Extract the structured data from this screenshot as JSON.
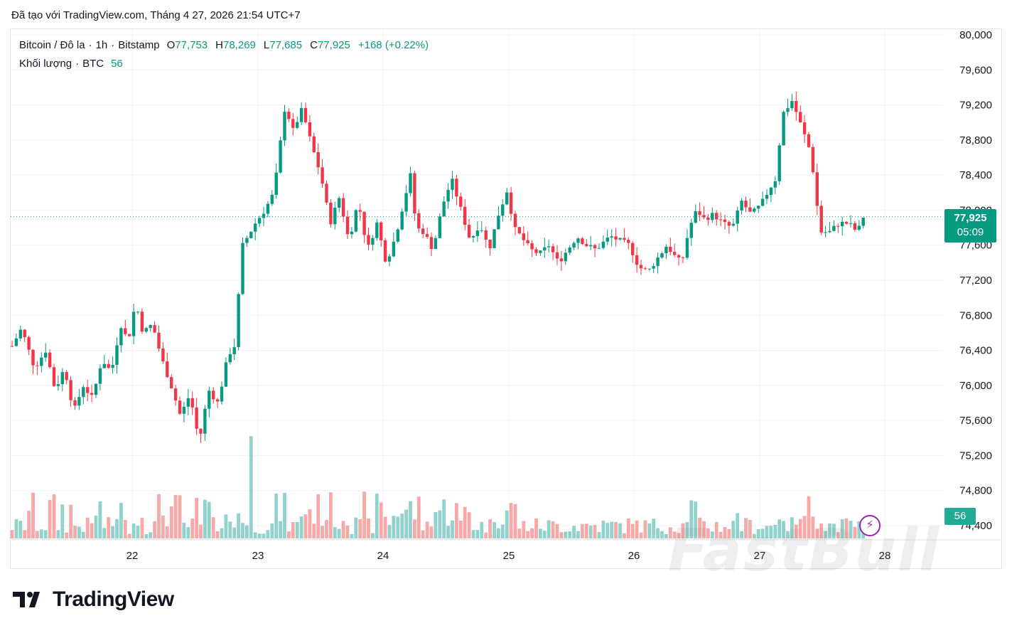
{
  "caption": "Đã tạo với TradingView.com, Tháng 4 27, 2026 21:54 UTC+7",
  "legend": {
    "symbol": "Bitcoin / Đô la",
    "interval": "1h",
    "exchange": "Bitstamp",
    "open_key": "O",
    "open": "77,753",
    "high_key": "H",
    "high": "78,269",
    "low_key": "L",
    "low": "77,685",
    "close_key": "C",
    "close": "77,925",
    "change": "+168 (+0.22%)",
    "volume_label": "Khối lượng",
    "volume_unit": "BTC",
    "volume_value": "56",
    "dot": "·"
  },
  "price_tag": {
    "price": "77,925",
    "countdown": "05:09"
  },
  "volume_tag": "56",
  "brand": "TradingView",
  "watermark": "FastBull",
  "icons": {
    "bolt": "lightning-bolt-icon",
    "logo": "tradingview-logo-icon"
  },
  "colors": {
    "up": "#089981",
    "down": "#f23645",
    "up_volume": "#92d2cc",
    "down_volume": "#f7a9a7",
    "grid": "#f0f3fa",
    "accent": "#9c27b0"
  },
  "chart_data": {
    "type": "candlestick",
    "interval": "1h",
    "x_labels": [
      "22",
      "23",
      "24",
      "25",
      "26",
      "27",
      "28"
    ],
    "y_ticks": [
      "80,000",
      "79,600",
      "79,200",
      "78,800",
      "78,400",
      "78,000",
      "77,600",
      "77,200",
      "76,800",
      "76,400",
      "76,000",
      "75,600",
      "75,200",
      "74,800",
      "74,400"
    ],
    "ylim": [
      74300,
      80050
    ],
    "last_price": 77925,
    "series": [
      {
        "name": "Bitcoin / Đô la",
        "path": [
          [
            0,
            76450
          ],
          [
            5,
            76650
          ],
          [
            12,
            76200
          ],
          [
            18,
            76400
          ],
          [
            23,
            75950
          ],
          [
            28,
            76200
          ],
          [
            33,
            75700
          ],
          [
            38,
            76000
          ],
          [
            43,
            75850
          ],
          [
            48,
            76300
          ],
          [
            53,
            76150
          ],
          [
            58,
            76700
          ],
          [
            62,
            76500
          ],
          [
            66,
            76950
          ],
          [
            70,
            76600
          ],
          [
            75,
            76700
          ],
          [
            80,
            76300
          ],
          [
            85,
            76000
          ],
          [
            90,
            75650
          ],
          [
            95,
            75900
          ],
          [
            100,
            75350
          ],
          [
            105,
            75950
          ],
          [
            110,
            75800
          ],
          [
            115,
            76300
          ],
          [
            118,
            76450
          ],
          [
            120,
            76450
          ],
          [
            122,
            77550
          ],
          [
            126,
            77700
          ],
          [
            130,
            77850
          ],
          [
            135,
            78000
          ],
          [
            140,
            78200
          ],
          [
            143,
            78700
          ],
          [
            146,
            79200
          ],
          [
            150,
            78900
          ],
          [
            155,
            79150
          ],
          [
            160,
            78750
          ],
          [
            165,
            78400
          ],
          [
            170,
            77850
          ],
          [
            175,
            78150
          ],
          [
            180,
            77650
          ],
          [
            185,
            78100
          ],
          [
            190,
            77550
          ],
          [
            195,
            77850
          ],
          [
            200,
            77400
          ],
          [
            205,
            77700
          ],
          [
            210,
            78150
          ],
          [
            213,
            78400
          ],
          [
            216,
            77800
          ],
          [
            220,
            77750
          ],
          [
            225,
            77550
          ],
          [
            230,
            78050
          ],
          [
            235,
            78350
          ],
          [
            240,
            78000
          ],
          [
            245,
            77650
          ],
          [
            250,
            77850
          ],
          [
            255,
            77550
          ],
          [
            260,
            77950
          ],
          [
            265,
            78250
          ],
          [
            268,
            77800
          ],
          [
            272,
            77700
          ],
          [
            277,
            77550
          ],
          [
            282,
            77500
          ],
          [
            287,
            77600
          ],
          [
            292,
            77400
          ],
          [
            297,
            77550
          ],
          [
            302,
            77700
          ],
          [
            307,
            77600
          ],
          [
            312,
            77550
          ],
          [
            317,
            77650
          ],
          [
            320,
            77700
          ],
          [
            325,
            77650
          ],
          [
            330,
            77600
          ],
          [
            335,
            77350
          ],
          [
            340,
            77300
          ],
          [
            345,
            77450
          ],
          [
            350,
            77600
          ],
          [
            355,
            77450
          ],
          [
            358,
            77400
          ],
          [
            362,
            77800
          ],
          [
            366,
            78000
          ],
          [
            370,
            77900
          ],
          [
            375,
            77950
          ],
          [
            380,
            77850
          ],
          [
            385,
            77800
          ],
          [
            390,
            78100
          ],
          [
            395,
            77950
          ],
          [
            400,
            78050
          ],
          [
            405,
            78250
          ],
          [
            408,
            78350
          ],
          [
            412,
            79100
          ],
          [
            417,
            79250
          ],
          [
            422,
            78950
          ],
          [
            427,
            78650
          ],
          [
            432,
            77750
          ],
          [
            437,
            77750
          ],
          [
            442,
            77850
          ],
          [
            447,
            77850
          ],
          [
            452,
            77750
          ],
          [
            455,
            77925
          ]
        ]
      }
    ]
  }
}
